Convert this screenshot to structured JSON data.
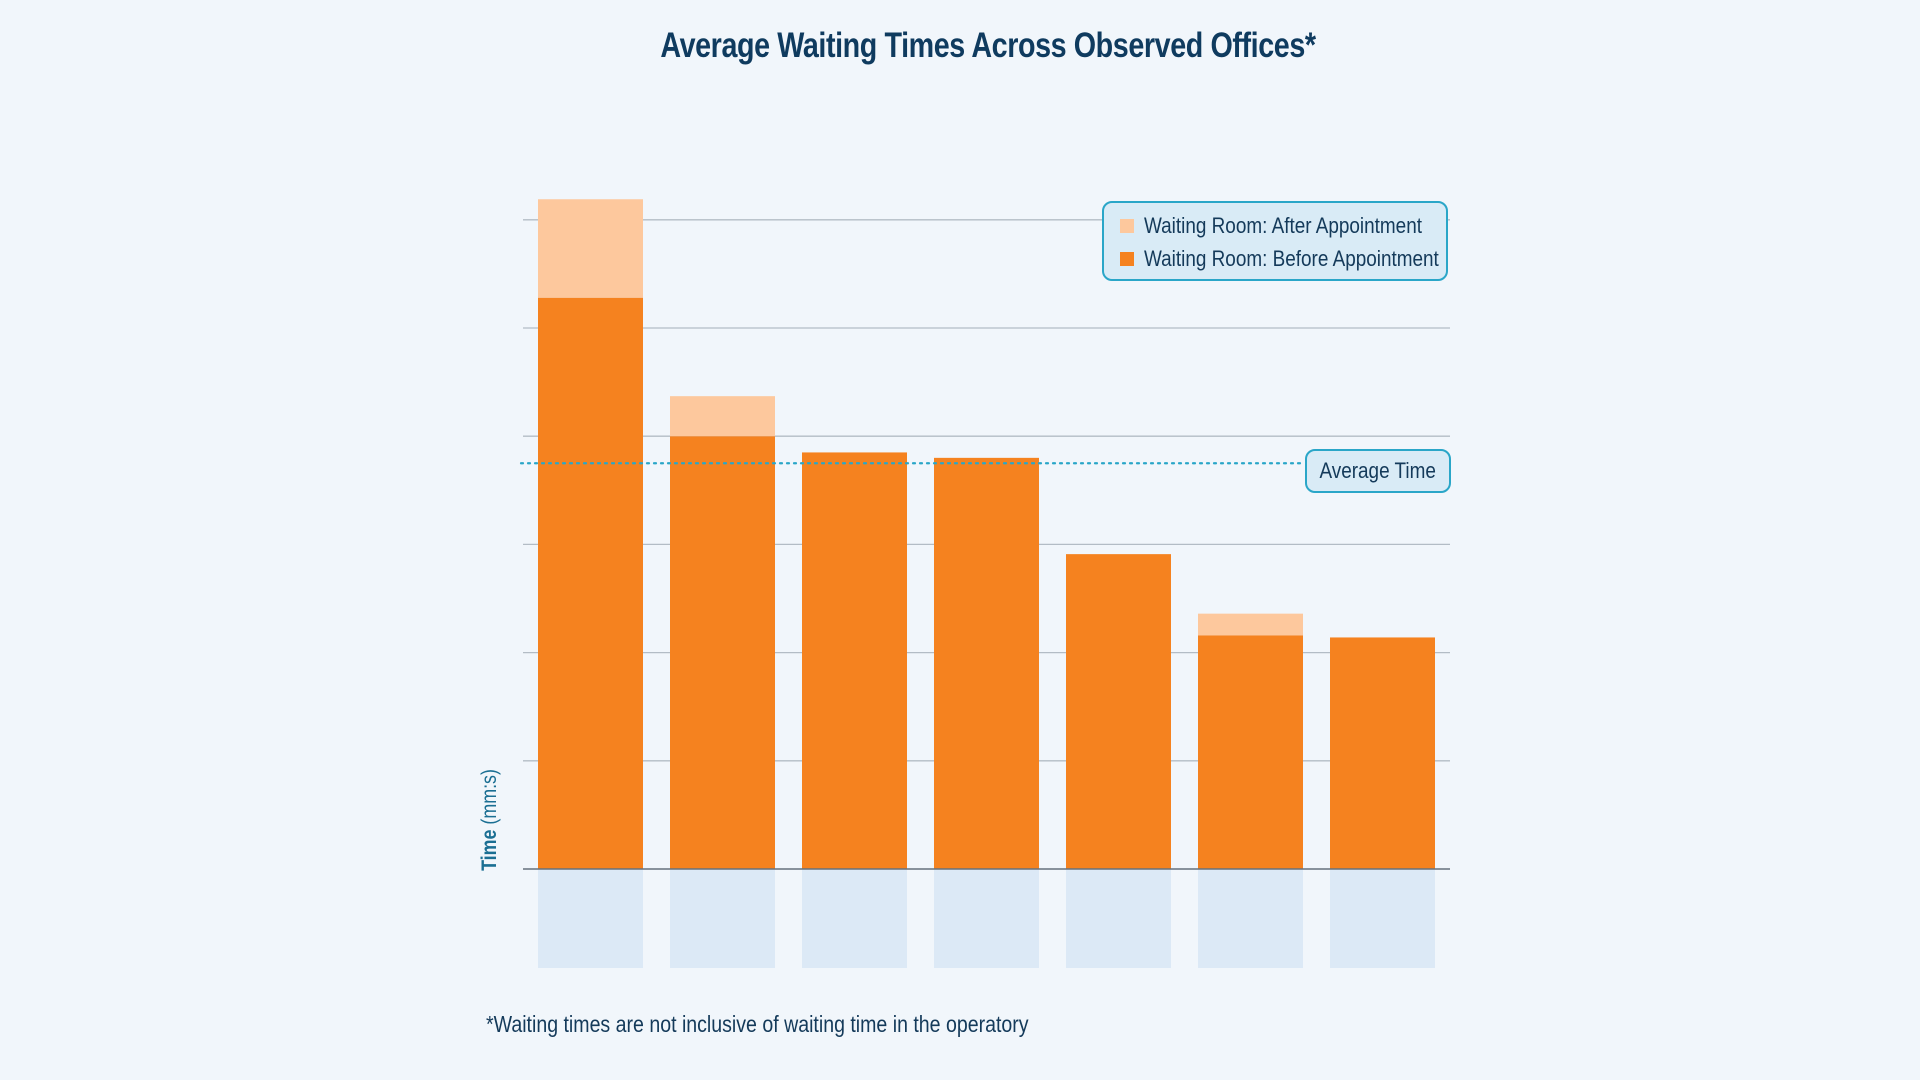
{
  "chart_data": {
    "type": "bar",
    "stacked": true,
    "title": "Average Waiting Times Across Observed Offices*",
    "ylabel_bold": "Time",
    "ylabel_units": "(mm:s)",
    "xlabel": "",
    "footnote": "*Waiting times are not inclusive of waiting time in the operatory",
    "grid": true,
    "legend_position": "top-right",
    "ylim": [
      0,
      6.2
    ],
    "average_line": {
      "label": "Average Time",
      "value": 3.75,
      "style": "dotted"
    },
    "categories": [
      "",
      "",
      "",
      "",
      "",
      "",
      ""
    ],
    "series": [
      {
        "name": "Waiting Room: Before Appointment",
        "color": "#f5821f",
        "values": [
          5.28,
          4.0,
          3.85,
          3.8,
          2.91,
          2.16,
          2.14
        ]
      },
      {
        "name": "Waiting Room: After Appointment",
        "color": "#fdc89d",
        "values": [
          0.91,
          0.37,
          0.0,
          0.0,
          0.0,
          0.2,
          0.0
        ]
      }
    ]
  },
  "colors": {
    "background": "#f1f6fb",
    "gridline": "#b3bcc5",
    "axis": "#66717c",
    "category_band": "#dce9f6",
    "accent": "#2aa6c8",
    "title": "#0f3b5f"
  }
}
